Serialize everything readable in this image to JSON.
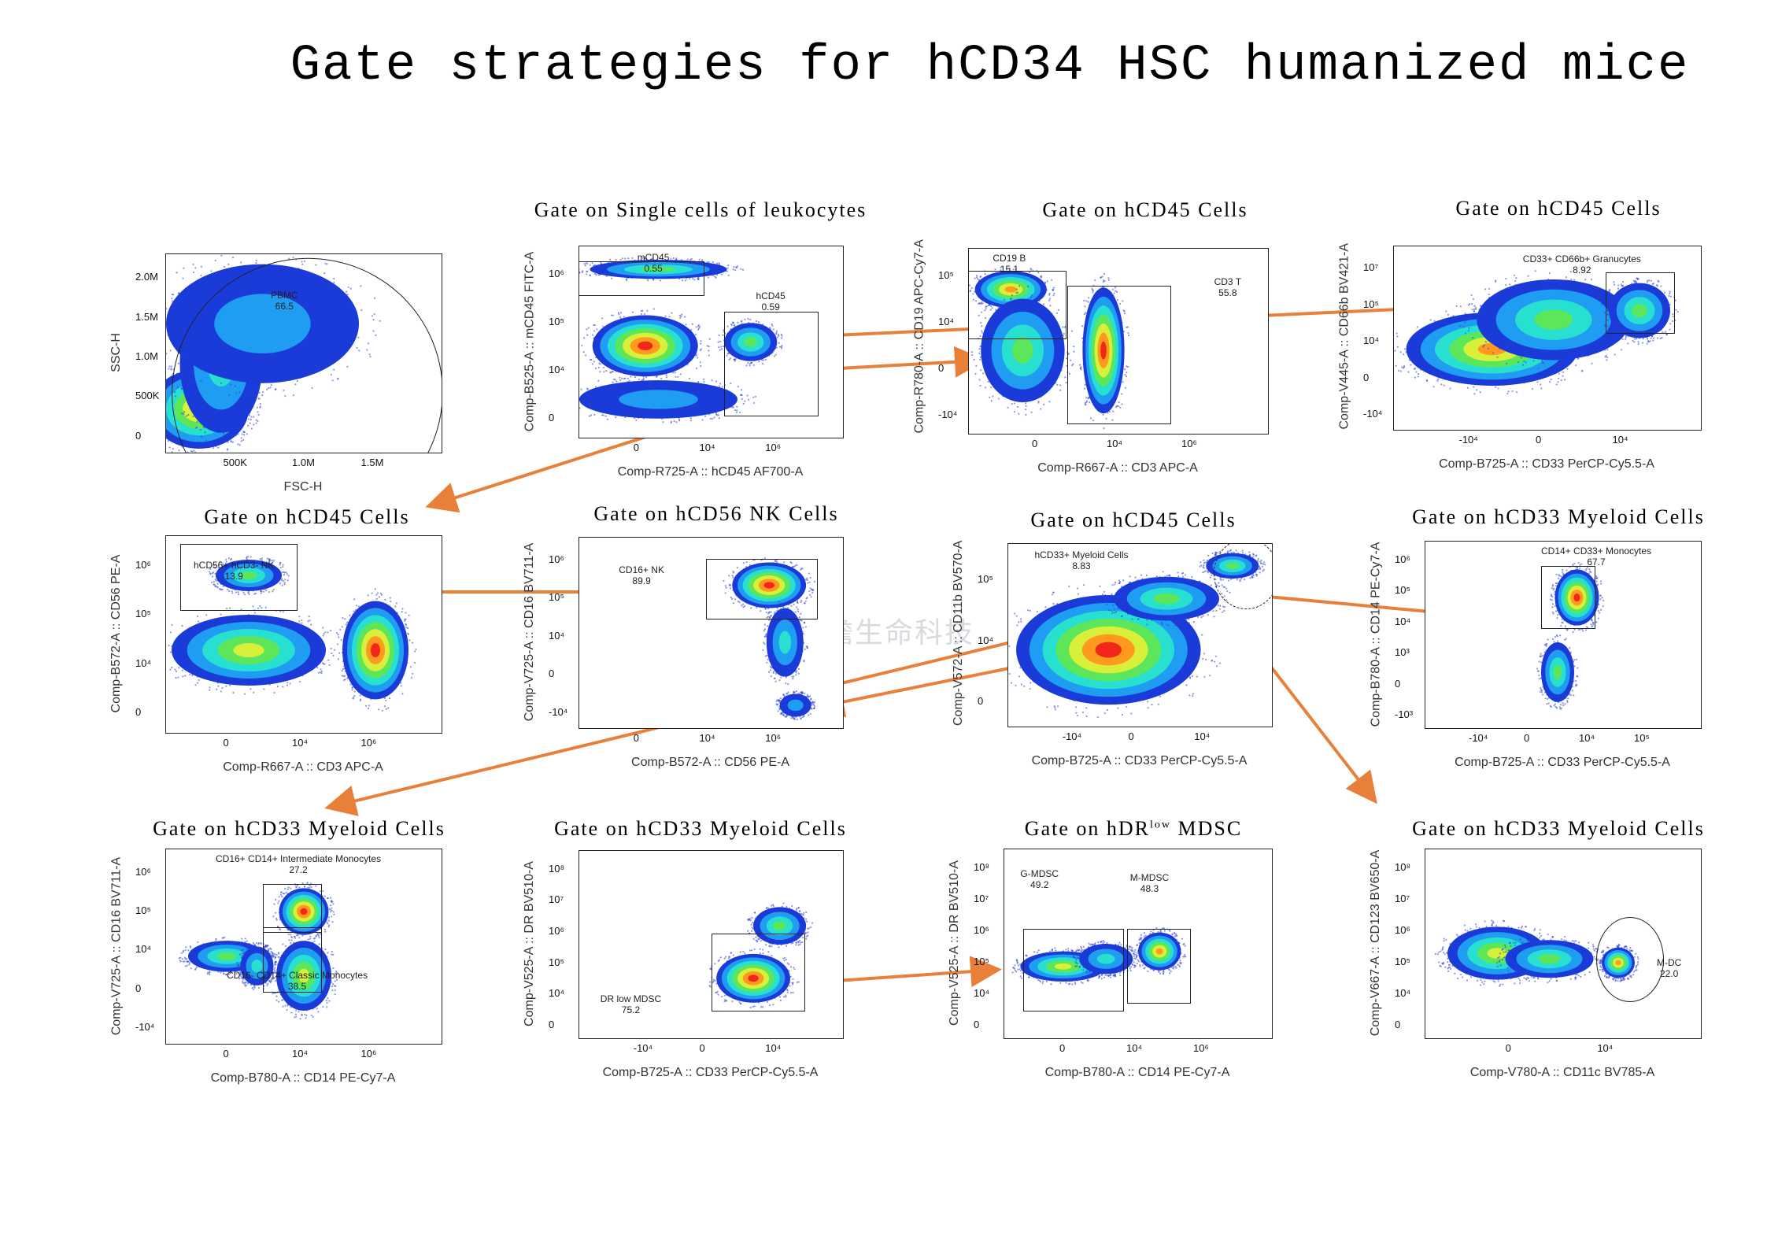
{
  "title": "Gate strategies for hCD34 HSC humanized mice",
  "watermark": "佑瞻生命科技",
  "colors": {
    "arrow": "#e8803a"
  },
  "plots": [
    {
      "id": "p1",
      "title": "",
      "xlabel": "FSC-H",
      "ylabel": "SSC-H",
      "xticks": [
        "500K",
        "1.0M",
        "1.5M"
      ],
      "yticks": [
        "2.0M",
        "1.5M",
        "1.0M",
        "500K",
        "0"
      ],
      "gates": [
        {
          "label": "PBMC",
          "value": "66.5"
        }
      ]
    },
    {
      "id": "p2",
      "title": "Gate on Single cells of leukocytes",
      "xlabel": "Comp-R725-A :: hCD45 AF700-A",
      "ylabel": "Comp-B525-A :: mCD45 FITC-A",
      "xticks": [
        "0",
        "10⁴",
        "10⁶"
      ],
      "yticks": [
        "10⁶",
        "10⁵",
        "10⁴",
        "0"
      ],
      "gates": [
        {
          "label": "mCD45",
          "value": "0.55"
        },
        {
          "label": "hCD45",
          "value": "0.59"
        }
      ]
    },
    {
      "id": "p3",
      "title": "Gate on hCD45 Cells",
      "xlabel": "Comp-R667-A :: CD3 APC-A",
      "ylabel": "Comp-R780-A :: CD19 APC-Cy7-A",
      "xticks": [
        "0",
        "10⁴",
        "10⁶"
      ],
      "yticks": [
        "10⁵",
        "10⁴",
        "0",
        "-10⁴"
      ],
      "gates": [
        {
          "label": "CD19 B",
          "value": "15.1"
        },
        {
          "label": "CD3 T",
          "value": "55.8"
        }
      ]
    },
    {
      "id": "p4",
      "title": "Gate on hCD45 Cells",
      "xlabel": "Comp-B725-A :: CD33 PerCP-Cy5.5-A",
      "ylabel": "Comp-V445-A :: CD66b BV421-A",
      "xticks": [
        "-10⁴",
        "0",
        "10⁴"
      ],
      "yticks": [
        "10⁷",
        "10⁵",
        "10⁴",
        "0",
        "-10⁴"
      ],
      "gates": [
        {
          "label": "CD33+ CD66b+ Granucytes",
          "value": "8.92"
        }
      ]
    },
    {
      "id": "p5",
      "title": "Gate on hCD45 Cells",
      "xlabel": "Comp-R667-A :: CD3 APC-A",
      "ylabel": "Comp-B572-A :: CD56 PE-A",
      "xticks": [
        "0",
        "10⁴",
        "10⁶"
      ],
      "yticks": [
        "10⁶",
        "10⁵",
        "10⁴",
        "0"
      ],
      "gates": [
        {
          "label": "hCD56+ hCD3- NK",
          "value": "13.9"
        }
      ]
    },
    {
      "id": "p6",
      "title": "Gate on hCD56 NK Cells",
      "xlabel": "Comp-B572-A :: CD56 PE-A",
      "ylabel": "Comp-V725-A :: CD16 BV711-A",
      "xticks": [
        "0",
        "10⁴",
        "10⁶"
      ],
      "yticks": [
        "10⁶",
        "10⁵",
        "10⁴",
        "0",
        "-10⁴"
      ],
      "gates": [
        {
          "label": "CD16+ NK",
          "value": "89.9"
        }
      ]
    },
    {
      "id": "p7",
      "title": "Gate on hCD45 Cells",
      "xlabel": "Comp-B725-A :: CD33 PerCP-Cy5.5-A",
      "ylabel": "Comp-V572-A :: CD11b BV570-A",
      "xticks": [
        "-10⁴",
        "0",
        "10⁴"
      ],
      "yticks": [
        "10⁵",
        "10⁴",
        "0"
      ],
      "gates": [
        {
          "label": "hCD33+ Myeloid Cells",
          "value": "8.83"
        }
      ]
    },
    {
      "id": "p8",
      "title": "Gate on hCD33 Myeloid Cells",
      "xlabel": "Comp-B725-A :: CD33 PerCP-Cy5.5-A",
      "ylabel": "Comp-B780-A :: CD14 PE-Cy7-A",
      "xticks": [
        "-10⁴",
        "0",
        "10⁴",
        "10⁵"
      ],
      "yticks": [
        "10⁶",
        "10⁵",
        "10⁴",
        "10³",
        "0",
        "-10³"
      ],
      "gates": [
        {
          "label": "CD14+ CD33+ Monocytes",
          "value": "67.7"
        }
      ]
    },
    {
      "id": "p9",
      "title": "Gate on hCD33 Myeloid Cells",
      "xlabel": "Comp-B780-A :: CD14 PE-Cy7-A",
      "ylabel": "Comp-V725-A :: CD16 BV711-A",
      "xticks": [
        "0",
        "10⁴",
        "10⁶"
      ],
      "yticks": [
        "10⁶",
        "10⁵",
        "10⁴",
        "0",
        "-10⁴"
      ],
      "gates": [
        {
          "label": "CD16+ CD14+ Intermediate Monocytes",
          "value": "27.2"
        },
        {
          "label": "CD16- CD14+ Classic Monocytes",
          "value": "38.5"
        }
      ]
    },
    {
      "id": "p10",
      "title": "Gate on hCD33 Myeloid Cells",
      "xlabel": "Comp-B725-A :: CD33 PerCP-Cy5.5-A",
      "ylabel": "Comp-V525-A :: DR BV510-A",
      "xticks": [
        "-10⁴",
        "0",
        "10⁴"
      ],
      "yticks": [
        "10⁸",
        "10⁷",
        "10⁶",
        "10⁵",
        "10⁴",
        "0"
      ],
      "gates": [
        {
          "label": "DR low MDSC",
          "value": "75.2"
        }
      ]
    },
    {
      "id": "p11",
      "title": "Gate on hDR",
      "title_sup": "low",
      "title_tail": " MDSC",
      "xlabel": "Comp-B780-A :: CD14 PE-Cy7-A",
      "ylabel": "Comp-V525-A :: DR BV510-A",
      "xticks": [
        "0",
        "10⁴",
        "10⁶"
      ],
      "yticks": [
        "10⁸",
        "10⁷",
        "10⁶",
        "10⁵",
        "10⁴",
        "0"
      ],
      "gates": [
        {
          "label": "G-MDSC",
          "value": "49.2"
        },
        {
          "label": "M-MDSC",
          "value": "48.3"
        }
      ]
    },
    {
      "id": "p12",
      "title": "Gate on hCD33 Myeloid Cells",
      "xlabel": "Comp-V780-A :: CD11c BV785-A",
      "ylabel": "Comp-V667-A :: CD123 BV650-A",
      "xticks": [
        "0",
        "10⁴"
      ],
      "yticks": [
        "10⁸",
        "10⁷",
        "10⁶",
        "10⁵",
        "10⁴",
        "0"
      ],
      "gates": [
        {
          "label": "M-DC",
          "value": "22.0"
        }
      ]
    }
  ]
}
